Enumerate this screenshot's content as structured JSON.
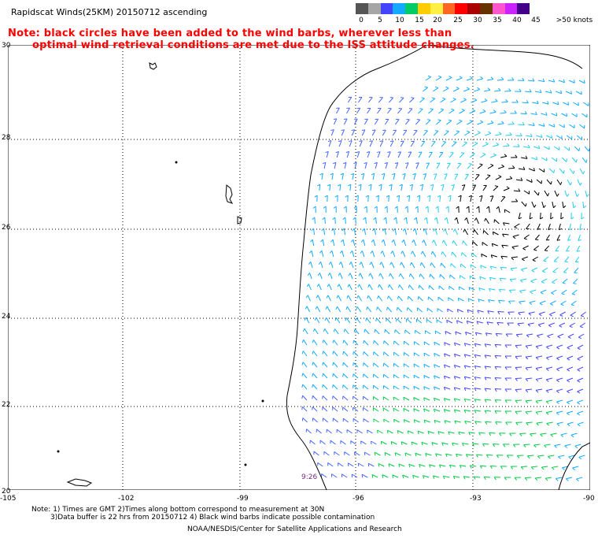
{
  "header": {
    "title": "Rapidscat Winds(25KM) 20150712 ascending",
    "note_line1": "Note: black circles have been added to the wind barbs, wherever less than",
    "note_line2": "optimal wind retrieval conditions are met due to the ISS attitude changes."
  },
  "legend": {
    "colors": [
      "#555555",
      "#a6a6a6",
      "#4444ff",
      "#11aaff",
      "#00cc66",
      "#ffcc00",
      "#ffee44",
      "#ff6622",
      "#ff0000",
      "#aa0000",
      "#663300",
      "#ff55cc",
      "#cc22ff",
      "#440088"
    ],
    "labels": [
      "0",
      "5",
      "10",
      "15",
      "20",
      "25",
      "30",
      "35",
      "40",
      "45",
      ">50 knots"
    ]
  },
  "axes": {
    "lat_labels": [
      "30",
      "28",
      "26",
      "24",
      "22",
      "20"
    ],
    "lon_labels": [
      "-105",
      "-102",
      "-99",
      "-96",
      "-93",
      "-90"
    ]
  },
  "timestamp": "9:26",
  "footer": {
    "line1": "Note: 1) Times are GMT 2)Times along bottom correspond to measurement at 30N",
    "line2": "3)Data buffer is 22 hrs from 20150712 4) Black wind barbs indicate possible contamination",
    "line3": "NOAA/NESDIS/Center for Satellite Applications and Research"
  }
}
